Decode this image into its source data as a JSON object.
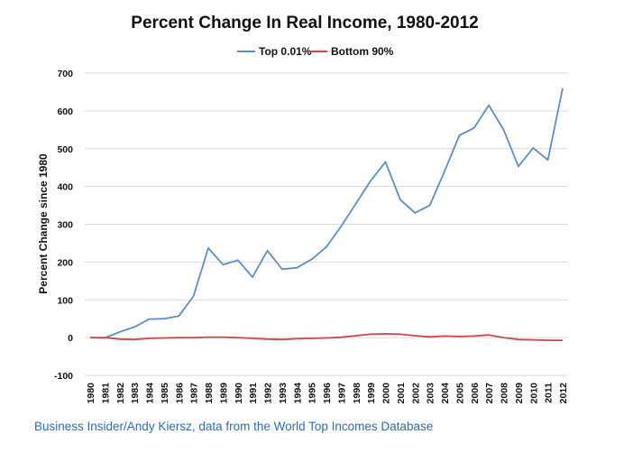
{
  "credit": "Business Insider/Andy Kiersz, data from the World Top Incomes Database",
  "colors": {
    "top": "#5b8fc4",
    "bottom": "#c94848",
    "grid": "#d9d9d9",
    "credit": "#2d6ea8"
  },
  "chart_data": {
    "type": "line",
    "title": "Percent Change In Real Income, 1980-2012",
    "xlabel": "",
    "ylabel": "Percent Change since 1980",
    "ylim": [
      -100,
      700
    ],
    "yticks": [
      -100,
      0,
      100,
      200,
      300,
      400,
      500,
      600,
      700
    ],
    "grid": "horizontal",
    "legend_position": "top-center",
    "x": [
      "1980",
      "1981",
      "1982",
      "1983",
      "1984",
      "1985",
      "1986",
      "1987",
      "1988",
      "1989",
      "1990",
      "1991",
      "1992",
      "1993",
      "1994",
      "1995",
      "1996",
      "1997",
      "1998",
      "1999",
      "2000",
      "2001",
      "2002",
      "2003",
      "2004",
      "2005",
      "2006",
      "2007",
      "2008",
      "2009",
      "2010",
      "2011",
      "2012"
    ],
    "series": [
      {
        "name": "Top 0.01%",
        "color": "#5b8fc4",
        "values": [
          0,
          -1,
          15,
          28,
          49,
          50,
          57,
          110,
          237,
          193,
          205,
          160,
          230,
          181,
          185,
          207,
          240,
          295,
          355,
          415,
          465,
          365,
          330,
          350,
          440,
          535,
          555,
          615,
          550,
          453,
          502,
          470,
          660
        ]
      },
      {
        "name": "Bottom 90%",
        "color": "#c94848",
        "values": [
          0,
          0,
          -4,
          -5,
          -2,
          -1,
          0,
          0,
          1,
          1,
          0,
          -2,
          -4,
          -5,
          -3,
          -2,
          -1,
          1,
          5,
          9,
          10,
          9,
          5,
          2,
          4,
          3,
          4,
          7,
          0,
          -5,
          -6,
          -7,
          -7
        ]
      }
    ]
  }
}
